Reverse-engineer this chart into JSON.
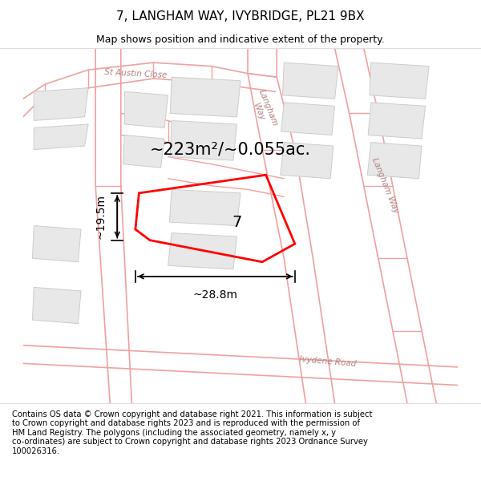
{
  "title": "7, LANGHAM WAY, IVYBRIDGE, PL21 9BX",
  "subtitle": "Map shows position and indicative extent of the property.",
  "footer": "Contains OS data © Crown copyright and database right 2021. This information is subject\nto Crown copyright and database rights 2023 and is reproduced with the permission of\nHM Land Registry. The polygons (including the associated geometry, namely x, y\nco-ordinates) are subject to Crown copyright and database rights 2023 Ordnance Survey\n100026316.",
  "bg_color": "#ffffff",
  "plot_color": "#ff0000",
  "plot_linewidth": 2.0,
  "road_color": "#f0a0a0",
  "block_fill": "#e8e8e8",
  "block_edge": "#cccccc",
  "area_label": "~223m²/~0.055ac.",
  "num_label": "7",
  "width_label": "~28.8m",
  "height_label": "~19.5m",
  "title_fontsize": 11,
  "subtitle_fontsize": 9,
  "footer_fontsize": 7.2,
  "area_fontsize": 15,
  "num_fontsize": 14,
  "meas_fontsize": 10
}
